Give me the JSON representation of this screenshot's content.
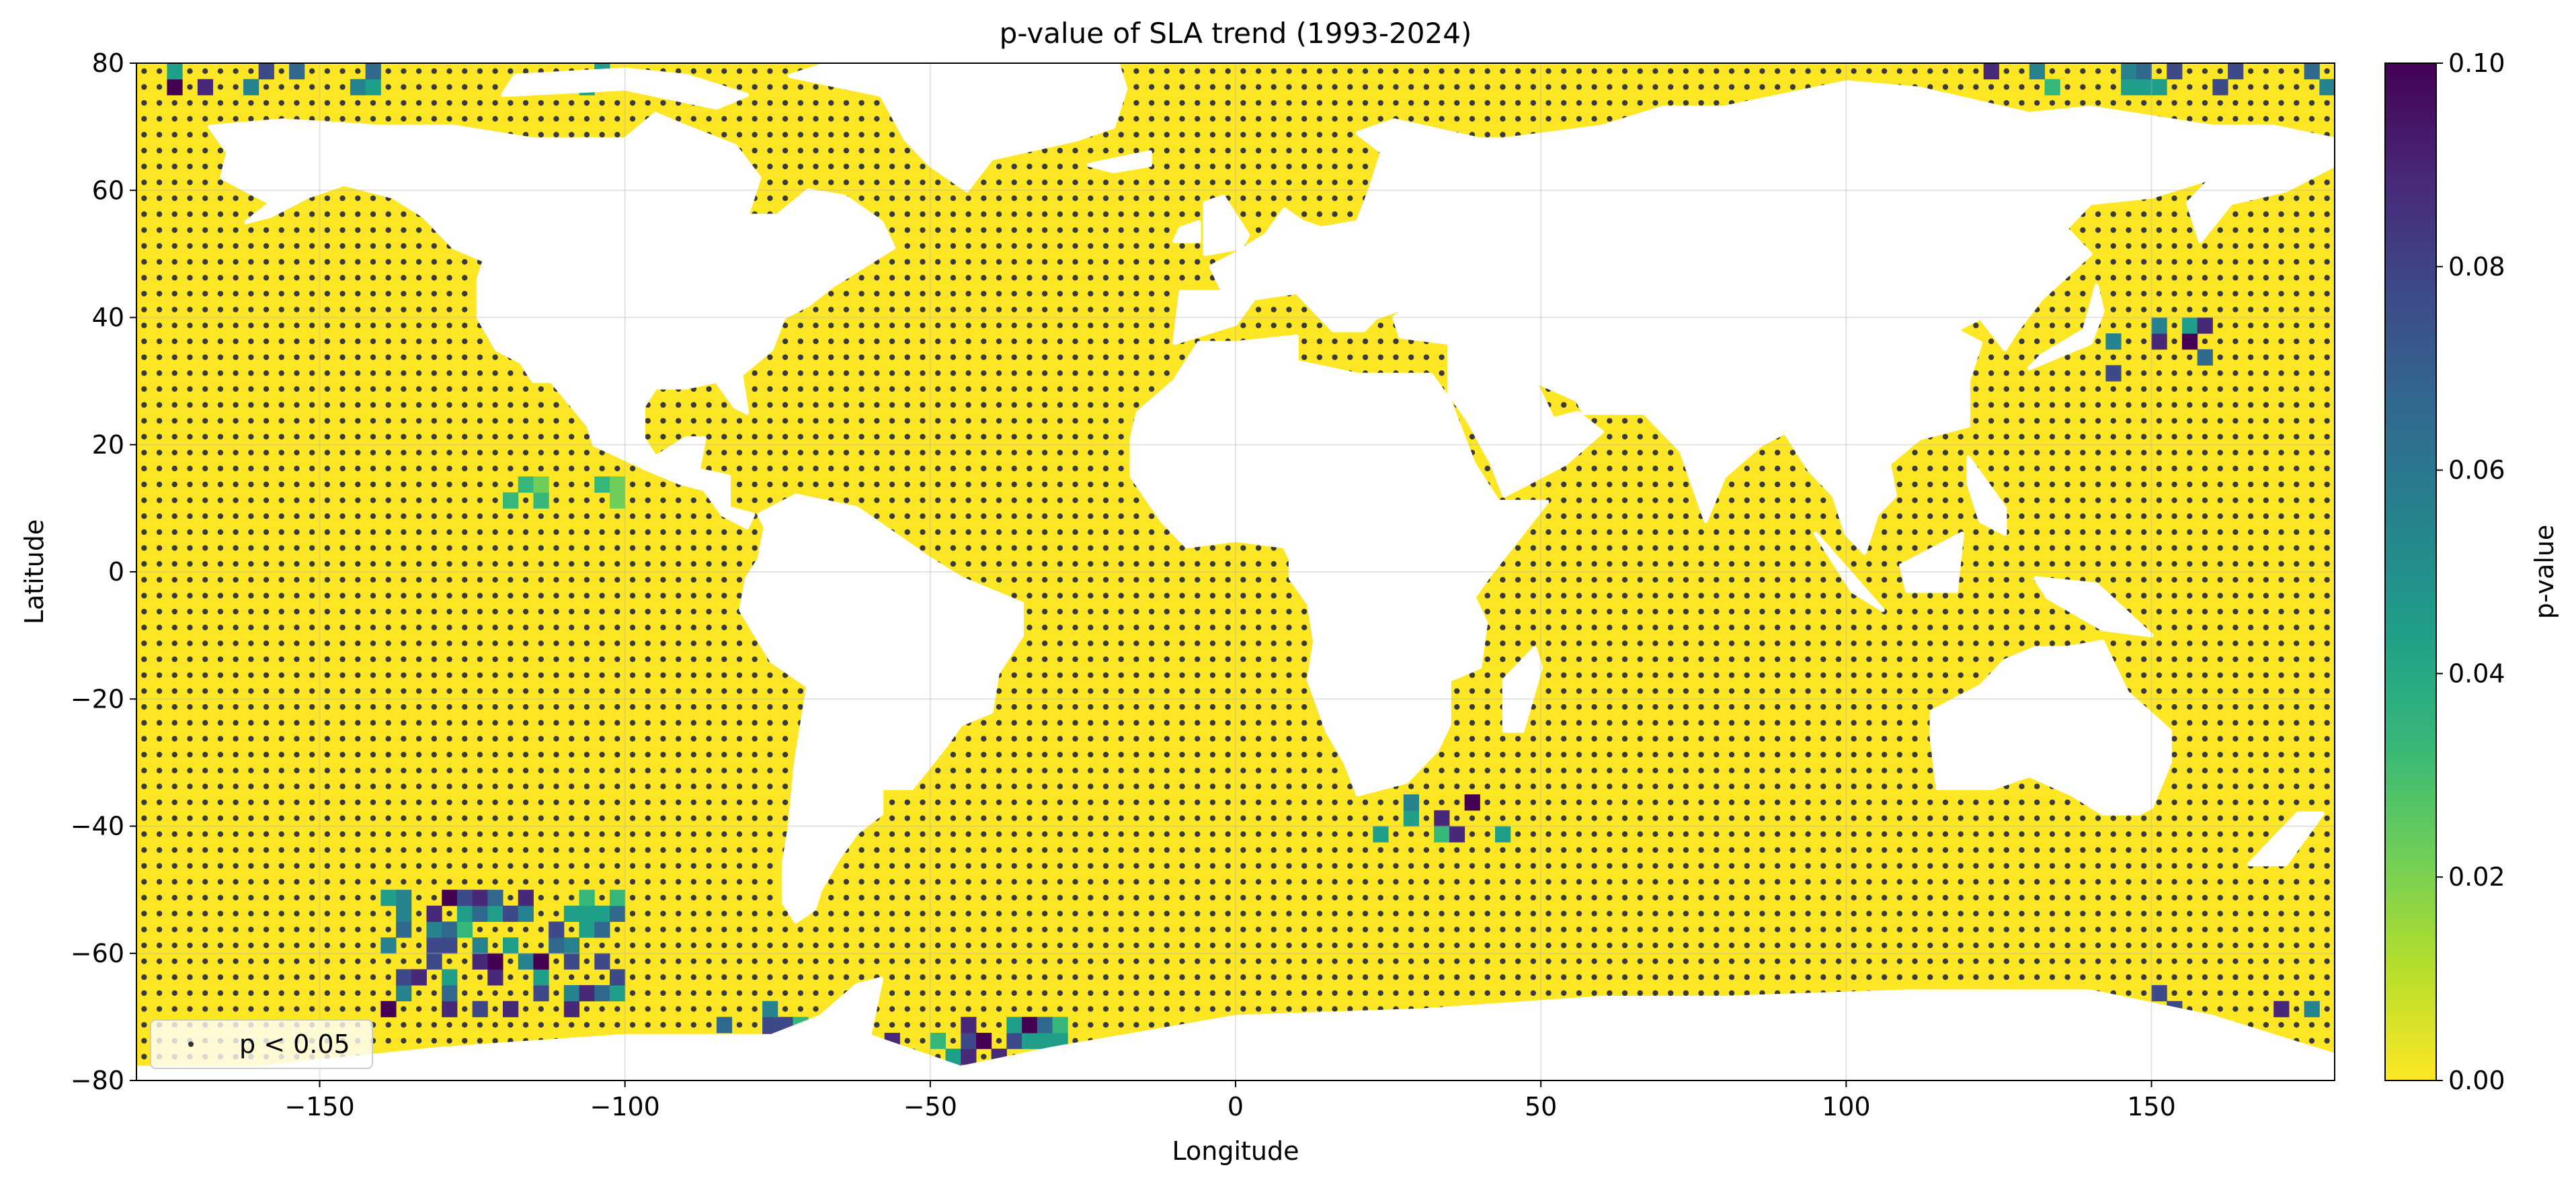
{
  "chart_data": {
    "type": "heatmap",
    "title": "p-value of SLA trend (1993-2024)",
    "xlabel": "Longitude",
    "ylabel": "Latitude",
    "xlim": [
      -180,
      180
    ],
    "ylim": [
      -80,
      80
    ],
    "grid": true,
    "x_ticks": [
      {
        "value": -150,
        "label": "−150"
      },
      {
        "value": -100,
        "label": "−100"
      },
      {
        "value": -50,
        "label": "−50"
      },
      {
        "value": 0,
        "label": "0"
      },
      {
        "value": 50,
        "label": "50"
      },
      {
        "value": 100,
        "label": "100"
      },
      {
        "value": 150,
        "label": "150"
      }
    ],
    "y_ticks": [
      {
        "value": 80,
        "label": "80"
      },
      {
        "value": 60,
        "label": "60"
      },
      {
        "value": 40,
        "label": "40"
      },
      {
        "value": 20,
        "label": "20"
      },
      {
        "value": 0,
        "label": "0"
      },
      {
        "value": -20,
        "label": "−20"
      },
      {
        "value": -40,
        "label": "−40"
      },
      {
        "value": -60,
        "label": "−60"
      },
      {
        "value": -80,
        "label": "−80"
      }
    ],
    "colorbar": {
      "label": "p-value",
      "range": [
        0.0,
        0.1
      ],
      "colormap": "viridis_r",
      "colors": [
        "#fde725",
        "#b5de2b",
        "#6ece58",
        "#35b779",
        "#1f9e89",
        "#26828e",
        "#31688e",
        "#3e4989",
        "#482878",
        "#440154"
      ],
      "ticks": [
        {
          "value": 0.0,
          "label": "0.00"
        },
        {
          "value": 0.02,
          "label": "0.02"
        },
        {
          "value": 0.04,
          "label": "0.04"
        },
        {
          "value": 0.06,
          "label": "0.06"
        },
        {
          "value": 0.08,
          "label": "0.08"
        },
        {
          "value": 0.1,
          "label": "0.10"
        }
      ]
    },
    "legend": {
      "label": "p < 0.05",
      "placement": "lower-left",
      "marker_color": "#333333"
    },
    "grid_resolution_deg": 2.5,
    "background_p_value": 0.0,
    "land_polygons": [
      [
        [
          -168,
          70
        ],
        [
          -156,
          71
        ],
        [
          -140,
          70
        ],
        [
          -128,
          70
        ],
        [
          -115,
          68
        ],
        [
          -100,
          68
        ],
        [
          -95,
          72
        ],
        [
          -90,
          70
        ],
        [
          -82,
          67
        ],
        [
          -78,
          62
        ],
        [
          -80,
          56
        ],
        [
          -75,
          56
        ],
        [
          -70,
          60
        ],
        [
          -64,
          59
        ],
        [
          -58,
          55
        ],
        [
          -56,
          51
        ],
        [
          -66,
          45
        ],
        [
          -70,
          42
        ],
        [
          -74,
          40
        ],
        [
          -76,
          35
        ],
        [
          -81,
          31
        ],
        [
          -80,
          25
        ],
        [
          -82,
          26
        ],
        [
          -85,
          30
        ],
        [
          -90,
          29
        ],
        [
          -95,
          29
        ],
        [
          -97,
          26
        ],
        [
          -97,
          21
        ],
        [
          -95,
          18
        ],
        [
          -90,
          21
        ],
        [
          -87,
          21
        ],
        [
          -88,
          16
        ],
        [
          -83,
          15
        ],
        [
          -83,
          10
        ],
        [
          -79,
          9
        ],
        [
          -80,
          7
        ],
        [
          -84,
          9
        ],
        [
          -87,
          13
        ],
        [
          -91,
          14
        ],
        [
          -96,
          16
        ],
        [
          -105,
          20
        ],
        [
          -106,
          23
        ],
        [
          -112,
          30
        ],
        [
          -115,
          30
        ],
        [
          -117,
          33
        ],
        [
          -121,
          35
        ],
        [
          -124,
          40
        ],
        [
          -124,
          46
        ],
        [
          -123,
          49
        ],
        [
          -128,
          51
        ],
        [
          -133,
          56
        ],
        [
          -138,
          59
        ],
        [
          -146,
          61
        ],
        [
          -152,
          59
        ],
        [
          -158,
          56
        ],
        [
          -162,
          55
        ],
        [
          -158,
          58
        ],
        [
          -162,
          60
        ],
        [
          -166,
          62
        ],
        [
          -165,
          66
        ]
      ],
      [
        [
          -78,
          9
        ],
        [
          -72,
          12
        ],
        [
          -62,
          10
        ],
        [
          -56,
          6
        ],
        [
          -50,
          2
        ],
        [
          -45,
          -1
        ],
        [
          -35,
          -5
        ],
        [
          -35,
          -10
        ],
        [
          -39,
          -16
        ],
        [
          -40,
          -22
        ],
        [
          -45,
          -24
        ],
        [
          -48,
          -28
        ],
        [
          -53,
          -34
        ],
        [
          -58,
          -34
        ],
        [
          -58,
          -38
        ],
        [
          -62,
          -41
        ],
        [
          -65,
          -45
        ],
        [
          -68,
          -50
        ],
        [
          -69,
          -53
        ],
        [
          -72,
          -55
        ],
        [
          -74,
          -52
        ],
        [
          -74,
          -46
        ],
        [
          -73,
          -40
        ],
        [
          -72,
          -30
        ],
        [
          -71,
          -24
        ],
        [
          -70,
          -18
        ],
        [
          -76,
          -14
        ],
        [
          -81,
          -6
        ],
        [
          -80,
          -1
        ],
        [
          -78,
          2
        ],
        [
          -77,
          7
        ]
      ],
      [
        [
          -73,
          78
        ],
        [
          -60,
          82
        ],
        [
          -40,
          83
        ],
        [
          -20,
          82
        ],
        [
          -18,
          76
        ],
        [
          -20,
          70
        ],
        [
          -26,
          68
        ],
        [
          -40,
          65
        ],
        [
          -44,
          60
        ],
        [
          -50,
          64
        ],
        [
          -54,
          68
        ],
        [
          -58,
          75
        ],
        [
          -68,
          77
        ]
      ],
      [
        [
          -120,
          75
        ],
        [
          -100,
          76
        ],
        [
          -85,
          73
        ],
        [
          -80,
          75
        ],
        [
          -90,
          78
        ],
        [
          -100,
          79
        ],
        [
          -118,
          78
        ]
      ],
      [
        [
          -17,
          21
        ],
        [
          -17,
          15
        ],
        [
          -12,
          8
        ],
        [
          -8,
          4
        ],
        [
          0,
          5
        ],
        [
          8,
          4
        ],
        [
          9,
          2
        ],
        [
          9,
          -1
        ],
        [
          12,
          -5
        ],
        [
          13,
          -11
        ],
        [
          12,
          -17
        ],
        [
          15,
          -25
        ],
        [
          18,
          -30
        ],
        [
          20,
          -35
        ],
        [
          28,
          -33
        ],
        [
          33,
          -28
        ],
        [
          35,
          -24
        ],
        [
          35,
          -17
        ],
        [
          40,
          -15
        ],
        [
          41,
          -8
        ],
        [
          39,
          -4
        ],
        [
          42,
          0
        ],
        [
          51,
          11
        ],
        [
          43,
          11
        ],
        [
          39,
          17
        ],
        [
          35,
          27
        ],
        [
          32,
          31
        ],
        [
          20,
          31
        ],
        [
          10,
          33
        ],
        [
          10,
          37
        ],
        [
          0,
          36
        ],
        [
          -6,
          36
        ],
        [
          -10,
          30
        ],
        [
          -16,
          25
        ]
      ],
      [
        [
          -10,
          36
        ],
        [
          -9,
          44
        ],
        [
          -2,
          44
        ],
        [
          -4,
          48
        ],
        [
          0,
          50
        ],
        [
          5,
          53
        ],
        [
          8,
          57
        ],
        [
          11,
          55
        ],
        [
          14,
          54
        ],
        [
          20,
          55
        ],
        [
          22,
          60
        ],
        [
          24,
          66
        ],
        [
          20,
          69
        ],
        [
          26,
          71
        ],
        [
          40,
          68
        ],
        [
          44,
          68
        ],
        [
          60,
          70
        ],
        [
          70,
          73
        ],
        [
          80,
          73
        ],
        [
          100,
          77
        ],
        [
          112,
          76
        ],
        [
          130,
          72
        ],
        [
          140,
          73
        ],
        [
          160,
          70
        ],
        [
          170,
          70
        ],
        [
          180,
          68
        ],
        [
          180,
          64
        ],
        [
          172,
          60
        ],
        [
          163,
          58
        ],
        [
          158,
          52
        ],
        [
          156,
          58
        ],
        [
          160,
          62
        ],
        [
          150,
          59
        ],
        [
          140,
          58
        ],
        [
          136,
          54
        ],
        [
          140,
          50
        ],
        [
          132,
          43
        ],
        [
          128,
          38
        ],
        [
          126,
          35
        ],
        [
          122,
          40
        ],
        [
          118,
          38
        ],
        [
          122,
          36
        ],
        [
          120,
          30
        ],
        [
          120,
          23
        ],
        [
          112,
          21
        ],
        [
          107,
          17
        ],
        [
          108,
          12
        ],
        [
          105,
          9
        ],
        [
          103,
          3
        ],
        [
          100,
          6
        ],
        [
          98,
          12
        ],
        [
          94,
          16
        ],
        [
          90,
          22
        ],
        [
          86,
          20
        ],
        [
          80,
          15
        ],
        [
          77,
          8
        ],
        [
          73,
          19
        ],
        [
          67,
          25
        ],
        [
          57,
          25
        ],
        [
          56,
          27
        ],
        [
          49,
          30
        ],
        [
          52,
          24
        ],
        [
          56,
          25
        ],
        [
          60,
          22
        ],
        [
          54,
          17
        ],
        [
          44,
          12
        ],
        [
          42,
          17
        ],
        [
          38,
          24
        ],
        [
          35,
          28
        ],
        [
          35,
          36
        ],
        [
          27,
          37
        ],
        [
          26,
          40
        ],
        [
          29,
          42
        ],
        [
          23,
          40
        ],
        [
          21,
          38
        ],
        [
          16,
          38
        ],
        [
          12,
          42
        ],
        [
          10,
          44
        ],
        [
          3,
          43
        ],
        [
          0,
          39
        ]
      ],
      [
        [
          114,
          -22
        ],
        [
          114,
          -26
        ],
        [
          115,
          -34
        ],
        [
          124,
          -34
        ],
        [
          130,
          -32
        ],
        [
          137,
          -35
        ],
        [
          142,
          -38
        ],
        [
          148,
          -38
        ],
        [
          150,
          -37
        ],
        [
          153,
          -30
        ],
        [
          153,
          -25
        ],
        [
          146,
          -19
        ],
        [
          142,
          -11
        ],
        [
          136,
          -12
        ],
        [
          131,
          -12
        ],
        [
          126,
          -14
        ],
        [
          122,
          -18
        ]
      ],
      [
        [
          -180,
          -90
        ],
        [
          180,
          -90
        ],
        [
          180,
          -76
        ],
        [
          160,
          -70
        ],
        [
          140,
          -66
        ],
        [
          110,
          -66
        ],
        [
          80,
          -67
        ],
        [
          60,
          -67
        ],
        [
          30,
          -69
        ],
        [
          0,
          -70
        ],
        [
          -30,
          -75
        ],
        [
          -45,
          -78
        ],
        [
          -60,
          -73
        ],
        [
          -58,
          -64
        ],
        [
          -62,
          -65
        ],
        [
          -68,
          -70
        ],
        [
          -76,
          -73
        ],
        [
          -100,
          -73
        ],
        [
          -130,
          -75
        ],
        [
          -160,
          -78
        ],
        [
          -180,
          -78
        ]
      ],
      [
        [
          -5,
          50
        ],
        [
          -5,
          58
        ],
        [
          -2,
          59
        ],
        [
          2,
          53
        ],
        [
          1,
          51
        ]
      ],
      [
        [
          -10,
          52
        ],
        [
          -6,
          52
        ],
        [
          -6,
          55
        ],
        [
          -9,
          54
        ]
      ],
      [
        [
          -24,
          64
        ],
        [
          -14,
          66
        ],
        [
          -14,
          64
        ],
        [
          -20,
          63
        ]
      ],
      [
        [
          44,
          -25
        ],
        [
          47,
          -25
        ],
        [
          50,
          -15
        ],
        [
          49,
          -12
        ],
        [
          44,
          -17
        ]
      ],
      [
        [
          95,
          6
        ],
        [
          106,
          -6
        ],
        [
          101,
          -3
        ]
      ],
      [
        [
          109,
          1
        ],
        [
          119,
          6
        ],
        [
          118,
          -3
        ],
        [
          110,
          -3
        ]
      ],
      [
        [
          131,
          -1
        ],
        [
          141,
          -2
        ],
        [
          150,
          -10
        ],
        [
          142,
          -9
        ],
        [
          133,
          -4
        ]
      ],
      [
        [
          130,
          32
        ],
        [
          140,
          36
        ],
        [
          142,
          41
        ],
        [
          141,
          45
        ],
        [
          139,
          38
        ],
        [
          132,
          34
        ]
      ],
      [
        [
          120,
          18
        ],
        [
          126,
          10
        ],
        [
          126,
          6
        ],
        [
          122,
          8
        ],
        [
          120,
          14
        ]
      ],
      [
        [
          166,
          -46
        ],
        [
          174,
          -38
        ],
        [
          178,
          -38
        ],
        [
          172,
          -46
        ]
      ]
    ],
    "hotspots": [
      {
        "lon": [
          -140,
          -100
        ],
        "lat": [
          -72,
          -52
        ],
        "p": 0.1,
        "density": 0.45
      },
      {
        "lon": [
          -85,
          -70
        ],
        "lat": [
          -80,
          -68
        ],
        "p": 0.1,
        "density": 0.6
      },
      {
        "lon": [
          -60,
          -25
        ],
        "lat": [
          -80,
          -70
        ],
        "p": 0.1,
        "density": 0.5
      },
      {
        "lon": [
          -175,
          -140
        ],
        "lat": [
          74,
          80
        ],
        "p": 0.1,
        "density": 0.45
      },
      {
        "lon": [
          -110,
          -80
        ],
        "lat": [
          74,
          80
        ],
        "p": 0.09,
        "density": 0.2
      },
      {
        "lon": [
          120,
          180
        ],
        "lat": [
          74,
          80
        ],
        "p": 0.1,
        "density": 0.3
      },
      {
        "lon": [
          140,
          160
        ],
        "lat": [
          28,
          38
        ],
        "p": 0.1,
        "density": 0.3
      },
      {
        "lon": [
          15,
          60
        ],
        "lat": [
          -44,
          -36
        ],
        "p": 0.1,
        "density": 0.2
      },
      {
        "lon": [
          -120,
          -95
        ],
        "lat": [
          8,
          14
        ],
        "p": 0.04,
        "density": 0.4
      },
      {
        "lon": [
          140,
          180
        ],
        "lat": [
          -72,
          -66
        ],
        "p": 0.1,
        "density": 0.2
      }
    ]
  }
}
